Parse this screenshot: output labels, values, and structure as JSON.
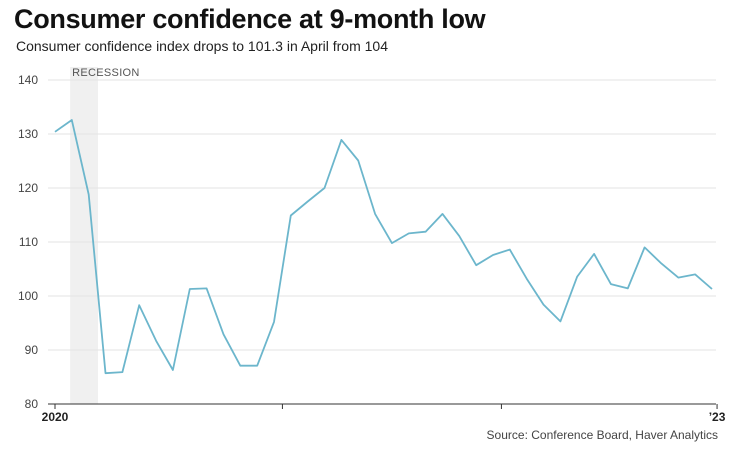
{
  "chart_data": {
    "type": "line",
    "title": "Consumer confidence at 9-month low",
    "subtitle": "Consumer confidence index drops to 101.3 in April from 104",
    "source": "Source: Conference Board, Haver Analytics",
    "ylim": [
      80,
      140
    ],
    "y_ticks": [
      80,
      90,
      100,
      110,
      120,
      130,
      140
    ],
    "x_tick_labels": [
      "2020",
      "",
      "",
      "’23"
    ],
    "grid": true,
    "shaded_region": {
      "label": "RECESSION",
      "start_index": 1,
      "end_index": 3
    },
    "series_color": "#6cb6cc",
    "x": [
      "2020-01",
      "2020-02",
      "2020-03",
      "2020-04",
      "2020-05",
      "2020-06",
      "2020-07",
      "2020-08",
      "2020-09",
      "2020-10",
      "2020-11",
      "2020-12",
      "2021-01",
      "2021-02",
      "2021-03",
      "2021-04",
      "2021-05",
      "2021-06",
      "2021-07",
      "2021-08",
      "2021-09",
      "2021-10",
      "2021-11",
      "2021-12",
      "2022-01",
      "2022-02",
      "2022-03",
      "2022-04",
      "2022-05",
      "2022-06",
      "2022-07",
      "2022-08",
      "2022-09",
      "2022-10",
      "2022-11",
      "2022-12",
      "2023-01",
      "2023-02",
      "2023-03",
      "2023-04"
    ],
    "values": [
      130.4,
      132.6,
      118.8,
      85.7,
      85.9,
      98.3,
      91.7,
      86.3,
      101.3,
      101.4,
      92.9,
      87.1,
      87.1,
      95.2,
      114.9,
      117.5,
      120.0,
      128.9,
      125.1,
      115.2,
      109.8,
      111.6,
      111.9,
      115.2,
      111.1,
      105.7,
      107.6,
      108.6,
      103.2,
      98.4,
      95.3,
      103.6,
      107.8,
      102.2,
      101.4,
      109.0,
      106.0,
      103.4,
      104.0,
      101.3
    ]
  }
}
